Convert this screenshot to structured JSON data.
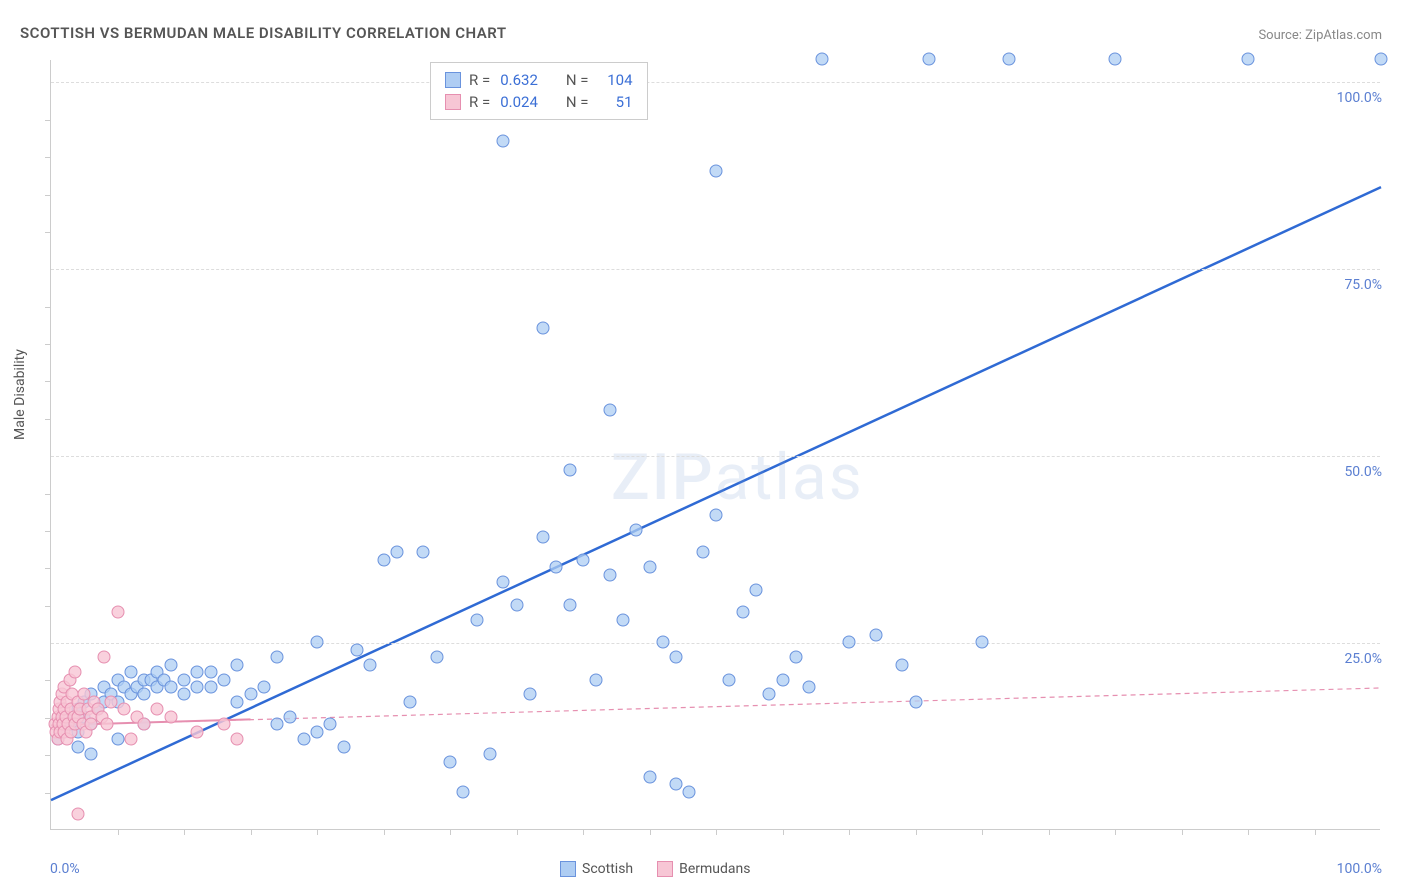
{
  "title": "SCOTTISH VS BERMUDAN MALE DISABILITY CORRELATION CHART",
  "source_label": "Source:",
  "source_value": "ZipAtlas.com",
  "ylabel": "Male Disability",
  "watermark": "ZIPatlas",
  "chart": {
    "type": "scatter",
    "xlim": [
      0,
      100
    ],
    "ylim": [
      0,
      103
    ],
    "background_color": "#ffffff",
    "grid_color": "#dddddd",
    "axis_color": "#cccccc",
    "tick_color": "#5b7fd1",
    "y_ticks": [
      25,
      50,
      75,
      100
    ],
    "y_tick_labels": [
      "25.0%",
      "50.0%",
      "75.0%",
      "100.0%"
    ],
    "x_tick_labels": {
      "0": "0.0%",
      "100": "100.0%"
    },
    "x_minor_ticks": [
      5,
      10,
      15,
      20,
      25,
      30,
      35,
      40,
      45,
      50,
      55,
      60,
      65,
      70,
      75,
      80,
      85,
      90,
      95
    ],
    "y_minor_ticks": [
      5,
      10,
      15,
      20,
      30,
      35,
      40,
      45,
      55,
      60,
      65,
      70,
      80,
      85,
      90,
      95
    ]
  },
  "legend_top": {
    "series": [
      {
        "swatch_fill": "#afcdf3",
        "swatch_border": "#6a93dd",
        "r_label": "R =",
        "r_value": "0.632",
        "n_label": "N =",
        "n_value": "104"
      },
      {
        "swatch_fill": "#f7c6d5",
        "swatch_border": "#e68fb0",
        "r_label": "R =",
        "r_value": "0.024",
        "n_label": "N =",
        "n_value": "51"
      }
    ]
  },
  "legend_bottom": {
    "items": [
      {
        "swatch_fill": "#aecdf3",
        "swatch_border": "#6a93dd",
        "label": "Scottish"
      },
      {
        "swatch_fill": "#f7c6d5",
        "swatch_border": "#e68fb0",
        "label": "Bermudans"
      }
    ]
  },
  "series": [
    {
      "name": "Scottish",
      "marker_fill": "rgba(174,205,243,0.75)",
      "marker_border": "#6a93dd",
      "marker_size": 13,
      "trend": {
        "x1": 0,
        "y1": 4,
        "x2": 100,
        "y2": 86,
        "color": "#2f6ad4",
        "width": 2.5,
        "dash": "none"
      },
      "points": [
        [
          0.5,
          12
        ],
        [
          1,
          13
        ],
        [
          1,
          15
        ],
        [
          1.5,
          14
        ],
        [
          2,
          13
        ],
        [
          2,
          16
        ],
        [
          2.5,
          15
        ],
        [
          2.5,
          17
        ],
        [
          3,
          14
        ],
        [
          3,
          18
        ],
        [
          3.5,
          16
        ],
        [
          4,
          17
        ],
        [
          4,
          19
        ],
        [
          4.5,
          18
        ],
        [
          5,
          17
        ],
        [
          5,
          20
        ],
        [
          5.5,
          19
        ],
        [
          6,
          18
        ],
        [
          6,
          21
        ],
        [
          6.5,
          19
        ],
        [
          7,
          18
        ],
        [
          7,
          20
        ],
        [
          7.5,
          20
        ],
        [
          8,
          19
        ],
        [
          8,
          21
        ],
        [
          8.5,
          20
        ],
        [
          9,
          19
        ],
        [
          9,
          22
        ],
        [
          10,
          20
        ],
        [
          10,
          18
        ],
        [
          11,
          21
        ],
        [
          11,
          19
        ],
        [
          12,
          19
        ],
        [
          12,
          21
        ],
        [
          13,
          20
        ],
        [
          14,
          17
        ],
        [
          14,
          22
        ],
        [
          15,
          18
        ],
        [
          16,
          19
        ],
        [
          17,
          14
        ],
        [
          17,
          23
        ],
        [
          18,
          15
        ],
        [
          19,
          12
        ],
        [
          20,
          13
        ],
        [
          20,
          25
        ],
        [
          21,
          14
        ],
        [
          22,
          11
        ],
        [
          23,
          24
        ],
        [
          24,
          22
        ],
        [
          25,
          36
        ],
        [
          26,
          37
        ],
        [
          27,
          17
        ],
        [
          28,
          37
        ],
        [
          29,
          23
        ],
        [
          30,
          9
        ],
        [
          31,
          5
        ],
        [
          32,
          28
        ],
        [
          33,
          10
        ],
        [
          34,
          33
        ],
        [
          34,
          92
        ],
        [
          35,
          30
        ],
        [
          36,
          18
        ],
        [
          37,
          39
        ],
        [
          37,
          67
        ],
        [
          38,
          35
        ],
        [
          39,
          30
        ],
        [
          39,
          48
        ],
        [
          40,
          36
        ],
        [
          41,
          20
        ],
        [
          42,
          34
        ],
        [
          42,
          56
        ],
        [
          43,
          28
        ],
        [
          44,
          40
        ],
        [
          45,
          7
        ],
        [
          45,
          35
        ],
        [
          46,
          25
        ],
        [
          47,
          6
        ],
        [
          47,
          23
        ],
        [
          48,
          5
        ],
        [
          49,
          37
        ],
        [
          50,
          42
        ],
        [
          50,
          88
        ],
        [
          51,
          20
        ],
        [
          52,
          29
        ],
        [
          53,
          32
        ],
        [
          54,
          18
        ],
        [
          55,
          20
        ],
        [
          56,
          23
        ],
        [
          57,
          19
        ],
        [
          58,
          103
        ],
        [
          60,
          25
        ],
        [
          62,
          26
        ],
        [
          64,
          22
        ],
        [
          65,
          17
        ],
        [
          66,
          103
        ],
        [
          70,
          25
        ],
        [
          72,
          103
        ],
        [
          80,
          103
        ],
        [
          90,
          103
        ],
        [
          100,
          103
        ],
        [
          2,
          11
        ],
        [
          3,
          10
        ],
        [
          5,
          12
        ],
        [
          7,
          14
        ]
      ]
    },
    {
      "name": "Bermudans",
      "marker_fill": "rgba(247,198,213,0.8)",
      "marker_border": "#e68fb0",
      "marker_size": 13,
      "trend": {
        "x1": 0,
        "y1": 14,
        "x2": 100,
        "y2": 19,
        "color": "#e68fb0",
        "width": 1.2,
        "dash": "5,4"
      },
      "trend_solid": {
        "x1": 0,
        "y1": 14,
        "x2": 15,
        "y2": 14.8,
        "color": "#e68fb0",
        "width": 2,
        "dash": "none"
      },
      "points": [
        [
          0.3,
          14
        ],
        [
          0.4,
          13
        ],
        [
          0.5,
          15
        ],
        [
          0.5,
          12
        ],
        [
          0.6,
          16
        ],
        [
          0.6,
          14
        ],
        [
          0.7,
          17
        ],
        [
          0.7,
          13
        ],
        [
          0.8,
          18
        ],
        [
          0.8,
          15
        ],
        [
          0.9,
          14
        ],
        [
          1,
          16
        ],
        [
          1,
          13
        ],
        [
          1,
          19
        ],
        [
          1.1,
          15
        ],
        [
          1.2,
          17
        ],
        [
          1.2,
          12
        ],
        [
          1.3,
          14
        ],
        [
          1.4,
          20
        ],
        [
          1.5,
          16
        ],
        [
          1.5,
          13
        ],
        [
          1.6,
          18
        ],
        [
          1.7,
          15
        ],
        [
          1.8,
          21
        ],
        [
          1.8,
          14
        ],
        [
          2,
          17
        ],
        [
          2,
          15
        ],
        [
          2.2,
          16
        ],
        [
          2.4,
          14
        ],
        [
          2.5,
          18
        ],
        [
          2.6,
          13
        ],
        [
          2.8,
          16
        ],
        [
          3,
          15
        ],
        [
          3,
          14
        ],
        [
          3.2,
          17
        ],
        [
          3.5,
          16
        ],
        [
          3.8,
          15
        ],
        [
          4,
          23
        ],
        [
          4.2,
          14
        ],
        [
          4.5,
          17
        ],
        [
          5,
          29
        ],
        [
          5.5,
          16
        ],
        [
          6,
          12
        ],
        [
          6.5,
          15
        ],
        [
          7,
          14
        ],
        [
          8,
          16
        ],
        [
          9,
          15
        ],
        [
          11,
          13
        ],
        [
          13,
          14
        ],
        [
          14,
          12
        ],
        [
          2,
          2
        ]
      ]
    }
  ]
}
